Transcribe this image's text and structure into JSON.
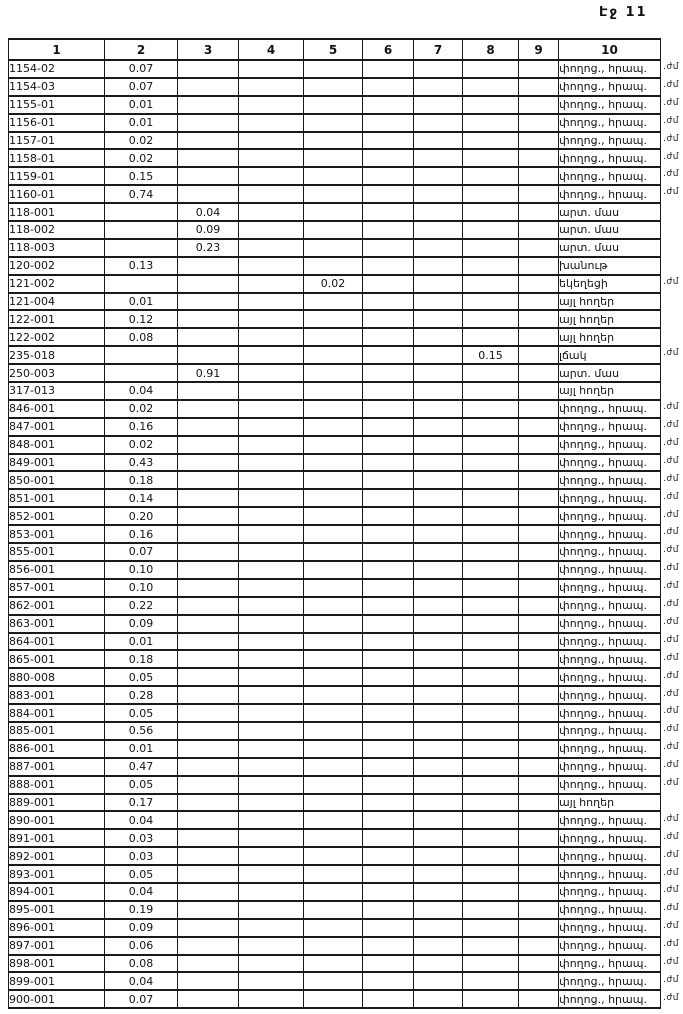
{
  "page": {
    "header_label": "Էջ 11"
  },
  "colors": {
    "paper": "#ffffff",
    "ink": "#1a1a1a"
  },
  "table": {
    "columns": [
      "1",
      "2",
      "3",
      "4",
      "5",
      "6",
      "7",
      "8",
      "9",
      "10"
    ],
    "rows": [
      {
        "id": "1154-02",
        "value_col": 2,
        "value": "0.07",
        "category": "փողոց., հրապ.",
        "note": ".ժմ"
      },
      {
        "id": "1154-03",
        "value_col": 2,
        "value": "0.07",
        "category": "փողոց., հրապ.",
        "note": ".ժմ"
      },
      {
        "id": "1155-01",
        "value_col": 2,
        "value": "0.01",
        "category": "փողոց., հրապ.",
        "note": ".ժմ"
      },
      {
        "id": "1156-01",
        "value_col": 2,
        "value": "0.01",
        "category": "փողոց., հրապ.",
        "note": ".ժմ"
      },
      {
        "id": "1157-01",
        "value_col": 2,
        "value": "0.02",
        "category": "փողոց., հրապ.",
        "note": ".ժմ"
      },
      {
        "id": "1158-01",
        "value_col": 2,
        "value": "0.02",
        "category": "փողոց., հրապ.",
        "note": ".ժմ"
      },
      {
        "id": "1159-01",
        "value_col": 2,
        "value": "0.15",
        "category": "փողոց., հրապ.",
        "note": ".ժմ"
      },
      {
        "id": "1160-01",
        "value_col": 2,
        "value": "0.74",
        "category": "փողոց., հրապ.",
        "note": ".ժմ"
      },
      {
        "id": "118-001",
        "value_col": 3,
        "value": "0.04",
        "category": "արտ. մաս",
        "note": ""
      },
      {
        "id": "118-002",
        "value_col": 3,
        "value": "0.09",
        "category": "արտ. մաս",
        "note": ""
      },
      {
        "id": "118-003",
        "value_col": 3,
        "value": "0.23",
        "category": "արտ. մաս",
        "note": ""
      },
      {
        "id": "120-002",
        "value_col": 2,
        "value": "0.13",
        "category": "խանութ",
        "note": ""
      },
      {
        "id": "121-002",
        "value_col": 5,
        "value": "0.02",
        "category": "եկեղեցի",
        "note": ".ժմ"
      },
      {
        "id": "121-004",
        "value_col": 2,
        "value": "0.01",
        "category": "այլ հողեր",
        "note": ""
      },
      {
        "id": "122-001",
        "value_col": 2,
        "value": "0.12",
        "category": "այլ հողեր",
        "note": ""
      },
      {
        "id": "122-002",
        "value_col": 2,
        "value": "0.08",
        "category": "այլ հողեր",
        "note": ""
      },
      {
        "id": "235-018",
        "value_col": 8,
        "value": "0.15",
        "category": "լճակ",
        "note": ".ժմ"
      },
      {
        "id": "250-003",
        "value_col": 3,
        "value": "0.91",
        "category": "արտ. մաս",
        "note": ""
      },
      {
        "id": "317-013",
        "value_col": 2,
        "value": "0.04",
        "category": "այլ հողեր",
        "note": ""
      },
      {
        "id": "846-001",
        "value_col": 2,
        "value": "0.02",
        "category": "փողոց., հրապ.",
        "note": ".ժմ"
      },
      {
        "id": "847-001",
        "value_col": 2,
        "value": "0.16",
        "category": "փողոց., հրապ.",
        "note": ".ժմ"
      },
      {
        "id": "848-001",
        "value_col": 2,
        "value": "0.02",
        "category": "փողոց., հրապ.",
        "note": ".ժմ"
      },
      {
        "id": "849-001",
        "value_col": 2,
        "value": "0.43",
        "category": "փողոց., հրապ.",
        "note": ".ժմ"
      },
      {
        "id": "850-001",
        "value_col": 2,
        "value": "0.18",
        "category": "փողոց., հրապ.",
        "note": ".ժմ"
      },
      {
        "id": "851-001",
        "value_col": 2,
        "value": "0.14",
        "category": "փողոց., հրապ.",
        "note": ".ժմ"
      },
      {
        "id": "852-001",
        "value_col": 2,
        "value": "0.20",
        "category": "փողոց., հրապ.",
        "note": ".ժմ"
      },
      {
        "id": "853-001",
        "value_col": 2,
        "value": "0.16",
        "category": "փողոց., հրապ.",
        "note": ".ժմ"
      },
      {
        "id": "855-001",
        "value_col": 2,
        "value": "0.07",
        "category": "փողոց., հրապ.",
        "note": ".ժմ"
      },
      {
        "id": "856-001",
        "value_col": 2,
        "value": "0.10",
        "category": "փողոց., հրապ.",
        "note": ".ժմ"
      },
      {
        "id": "857-001",
        "value_col": 2,
        "value": "0.10",
        "category": "փողոց., հրապ.",
        "note": ".ժմ"
      },
      {
        "id": "862-001",
        "value_col": 2,
        "value": "0.22",
        "category": "փողոց., հրապ.",
        "note": ".ժմ"
      },
      {
        "id": "863-001",
        "value_col": 2,
        "value": "0.09",
        "category": "փողոց., հրապ.",
        "note": ".ժմ"
      },
      {
        "id": "864-001",
        "value_col": 2,
        "value": "0.01",
        "category": "փողոց., հրապ.",
        "note": ".ժմ"
      },
      {
        "id": "865-001",
        "value_col": 2,
        "value": "0.18",
        "category": "փողոց., հրապ.",
        "note": ".ժմ"
      },
      {
        "id": "880-008",
        "value_col": 2,
        "value": "0.05",
        "category": "փողոց., հրապ.",
        "note": ".ժմ"
      },
      {
        "id": "883-001",
        "value_col": 2,
        "value": "0.28",
        "category": "փողոց., հրապ.",
        "note": ".ժմ"
      },
      {
        "id": "884-001",
        "value_col": 2,
        "value": "0.05",
        "category": "փողոց., հրապ.",
        "note": ".ժմ"
      },
      {
        "id": "885-001",
        "value_col": 2,
        "value": "0.56",
        "category": "փողոց., հրապ.",
        "note": ".ժմ"
      },
      {
        "id": "886-001",
        "value_col": 2,
        "value": "0.01",
        "category": "փողոց., հրապ.",
        "note": ".ժմ"
      },
      {
        "id": "887-001",
        "value_col": 2,
        "value": "0.47",
        "category": "փողոց., հրապ.",
        "note": ".ժմ"
      },
      {
        "id": "888-001",
        "value_col": 2,
        "value": "0.05",
        "category": "փողոց., հրապ.",
        "note": ".ժմ"
      },
      {
        "id": "889-001",
        "value_col": 2,
        "value": "0.17",
        "category": "այլ հողեր",
        "note": ""
      },
      {
        "id": "890-001",
        "value_col": 2,
        "value": "0.04",
        "category": "փողոց., հրապ.",
        "note": ".ժմ"
      },
      {
        "id": "891-001",
        "value_col": 2,
        "value": "0.03",
        "category": "փողոց., հրապ.",
        "note": ".ժմ"
      },
      {
        "id": "892-001",
        "value_col": 2,
        "value": "0.03",
        "category": "փողոց., հրապ.",
        "note": ".ժմ"
      },
      {
        "id": "893-001",
        "value_col": 2,
        "value": "0.05",
        "category": "փողոց., հրապ.",
        "note": ".ժմ"
      },
      {
        "id": "894-001",
        "value_col": 2,
        "value": "0.04",
        "category": "փողոց., հրապ.",
        "note": ".ժմ"
      },
      {
        "id": "895-001",
        "value_col": 2,
        "value": "0.19",
        "category": "փողոց., հրապ.",
        "note": ".ժմ"
      },
      {
        "id": "896-001",
        "value_col": 2,
        "value": "0.09",
        "category": "փողոց., հրապ.",
        "note": ".ժմ"
      },
      {
        "id": "897-001",
        "value_col": 2,
        "value": "0.06",
        "category": "փողոց., հրապ.",
        "note": ".ժմ"
      },
      {
        "id": "898-001",
        "value_col": 2,
        "value": "0.08",
        "category": "փողոց., հրապ.",
        "note": ".ժմ"
      },
      {
        "id": "899-001",
        "value_col": 2,
        "value": "0.04",
        "category": "փողոց., հրապ.",
        "note": ".ժմ"
      },
      {
        "id": "900-001",
        "value_col": 2,
        "value": "0.07",
        "category": "փողոց., հրապ.",
        "note": ".ժմ"
      }
    ]
  }
}
